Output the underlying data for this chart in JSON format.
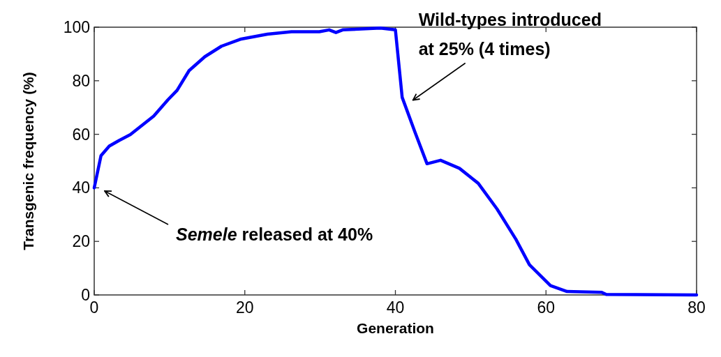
{
  "chart_data": {
    "type": "line",
    "xlabel": "Generation",
    "ylabel": "Transgenic frequency (%)",
    "xlim": [
      0,
      80
    ],
    "xticks": [
      0,
      20,
      40,
      60,
      80
    ],
    "ylim": [
      0,
      100
    ],
    "yticks": [
      0,
      20,
      40,
      60,
      80,
      100
    ],
    "grid": false,
    "marker": "none",
    "line_style": "solid",
    "series": [
      {
        "color": "#0000ff",
        "x": [
          0,
          0.9,
          2,
          3.3,
          4.8,
          7.9,
          9.8,
          11,
          12.6,
          14.7,
          16.9,
          19.4,
          23,
          26.2,
          29.9,
          31.2,
          32.1,
          33,
          38,
          39.8,
          40,
          40.9,
          42.6,
          44.2,
          46,
          48.5,
          51,
          53.5,
          56,
          57.8,
          60.6,
          62.8,
          67.4,
          68,
          80
        ],
        "values": [
          40,
          52,
          55.6,
          57.7,
          59.9,
          66.8,
          72.9,
          76.4,
          83.8,
          89,
          92.9,
          95.5,
          97.4,
          98.3,
          98.3,
          99,
          98,
          99,
          99.7,
          99.1,
          99,
          73.8,
          60.8,
          49,
          50.3,
          47.3,
          41.7,
          32.1,
          20.8,
          11.3,
          3.5,
          1.3,
          1,
          0.2,
          0
        ]
      }
    ],
    "annotations": [
      "Semele released at 40%",
      {
        "text": "Wild-types introduced\nat 25% (4 times)",
        "x": 41.5,
        "y": 72
      }
    ]
  }
}
